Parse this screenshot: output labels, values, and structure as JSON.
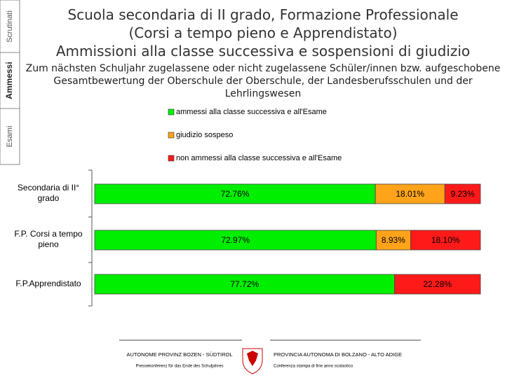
{
  "tabs": [
    "Scrutinati",
    "Ammessi",
    "Esami"
  ],
  "footer": {
    "left": [
      "AUTONOME PROVINZ BOZEN - SÜDTIROL",
      "Pressekonferenz für das Ende des Schuljahres"
    ],
    "right": [
      "PROVINCIA AUTONOMA DI BOLZANO - ALTO ADIGE",
      "Conferenza stampa di fine anno scolastico"
    ]
  },
  "chart_data": {
    "type": "stacked-bar-horizontal",
    "title": [
      "Scuola secondaria di II grado, Formazione Professionale",
      "(Corsi a tempo pieno e  Apprendistato)",
      "Ammissioni alla classe successiva e sospensioni di giudizio"
    ],
    "subtitle": [
      "Zum nächsten Schuljahr zugelassene oder nicht zugelassene Schüler/innen bzw. aufgeschobene",
      "Gesamtbewertung der Oberschule der Oberschule, der Landesberufsschulen und der Lehrlingswesen"
    ],
    "categories": [
      "Secondaria di II° grado",
      "F.P. Corsi a tempo pieno",
      "F.P.Apprendistato"
    ],
    "xlim": [
      0,
      100
    ],
    "series": [
      {
        "name": "ammessi alla classe successiva e all'Esame",
        "color": "#00ee00",
        "values": [
          72.76,
          72.97,
          77.72
        ],
        "value_labels": [
          "72.76%",
          "72.97%",
          "77.72%"
        ]
      },
      {
        "name": "giudizio sospeso",
        "color": "#ffa31a",
        "values": [
          18.01,
          8.93,
          null
        ],
        "value_labels": [
          "18.01%",
          "8.93%",
          null
        ]
      },
      {
        "name": "non ammessi alla classe successiva e all'Esame",
        "color": "#ff1a1a",
        "values": [
          9.23,
          18.1,
          22.28
        ],
        "value_labels": [
          "9.23%",
          "18.10%",
          "22.28%"
        ]
      }
    ]
  }
}
